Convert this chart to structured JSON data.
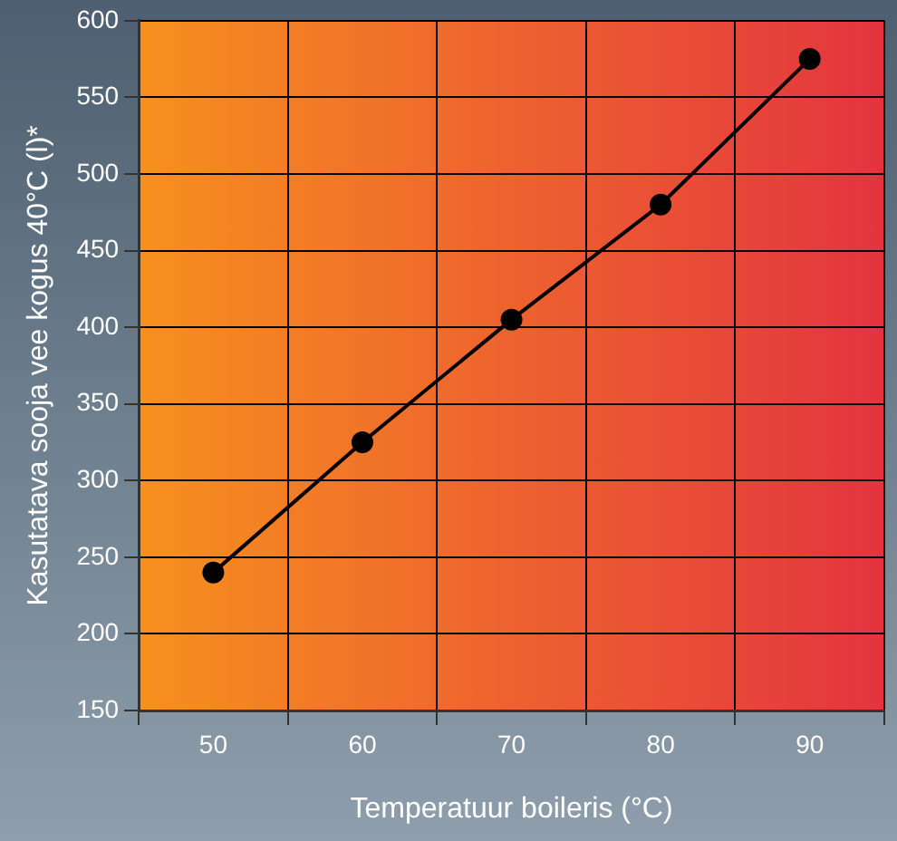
{
  "chart_data": {
    "type": "line",
    "xlabel": "Temperatuur boileris (°C)",
    "ylabel": "Kasutatava sooja vee kogus 40°C (l)*",
    "categories": [
      "50",
      "60",
      "70",
      "80",
      "90"
    ],
    "series": [
      {
        "color": "#000000",
        "values": [
          240,
          325,
          405,
          480,
          575
        ]
      }
    ],
    "ylim": [
      150,
      600
    ],
    "yticks": [
      150,
      200,
      250,
      300,
      350,
      400,
      450,
      500,
      550,
      600
    ],
    "grid": true,
    "marker": "circle",
    "line_style": "solid",
    "legend": false
  }
}
